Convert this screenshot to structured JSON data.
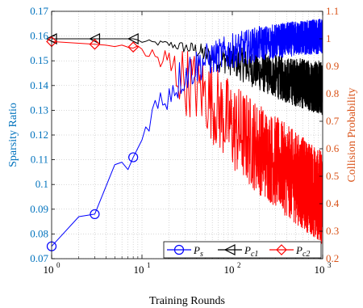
{
  "chart_data": {
    "type": "line",
    "xlabel": "Training Rounds",
    "ylabel_left": "Sparsity Ratio",
    "ylabel_right": "Collision Probability",
    "x_scale": "log",
    "xlim": [
      1,
      1000
    ],
    "ylim_left": [
      0.07,
      0.17
    ],
    "ylim_right": [
      0.2,
      1.1
    ],
    "x_ticks": [
      {
        "value": 1,
        "label": "10",
        "exp": "0"
      },
      {
        "value": 10,
        "label": "10",
        "exp": "1"
      },
      {
        "value": 100,
        "label": "10",
        "exp": "2"
      },
      {
        "value": 1000,
        "label": "10",
        "exp": "3"
      }
    ],
    "y_ticks_left": [
      "0.07",
      "0.08",
      "0.09",
      "0.1",
      "0.11",
      "0.12",
      "0.13",
      "0.14",
      "0.15",
      "0.16",
      "0.17"
    ],
    "y_ticks_right": [
      "0.2",
      "0.3",
      "0.4",
      "0.5",
      "0.6",
      "0.7",
      "0.8",
      "0.9",
      "1",
      "1.1"
    ],
    "grid": true,
    "legend_position": "bottom-right",
    "colors": {
      "ps": "#0000ff",
      "pc1": "#000000",
      "pc2": "#ff0000",
      "left_axis": "#0072bd",
      "right_axis": "#d95319"
    },
    "series": [
      {
        "id": "ps",
        "name_main": "P",
        "name_sub": "s",
        "axis": "left",
        "marker": "circle",
        "x": [
          1,
          2,
          3,
          5,
          6,
          7,
          8,
          10,
          12,
          15,
          20,
          30,
          50,
          100,
          200,
          500,
          1000
        ],
        "y": [
          0.075,
          0.087,
          0.088,
          0.108,
          0.109,
          0.106,
          0.111,
          0.118,
          0.127,
          0.132,
          0.138,
          0.145,
          0.15,
          0.154,
          0.157,
          0.159,
          0.16
        ],
        "noise": [
          0,
          0,
          0,
          0,
          0,
          0,
          0,
          0,
          0.004,
          0.005,
          0.006,
          0.006,
          0.005,
          0.005,
          0.005,
          0.005,
          0.005
        ],
        "marker_x": [
          1,
          3,
          8
        ]
      },
      {
        "id": "pc1",
        "name_main": "P",
        "name_sub": "c1",
        "axis": "right",
        "marker": "triangle-left",
        "x": [
          1,
          3,
          8,
          10,
          20,
          40,
          60,
          100,
          200,
          400,
          1000
        ],
        "y": [
          1.0,
          1.0,
          1.0,
          0.99,
          0.98,
          0.96,
          0.93,
          0.92,
          0.88,
          0.85,
          0.82
        ],
        "noise": [
          0,
          0,
          0,
          0.005,
          0.01,
          0.02,
          0.03,
          0.04,
          0.05,
          0.06,
          0.07
        ],
        "marker_x": [
          1,
          3,
          8
        ]
      },
      {
        "id": "pc2",
        "name_main": "P",
        "name_sub": "c2",
        "axis": "right",
        "marker": "diamond",
        "x": [
          1,
          3,
          8,
          10,
          20,
          30,
          50,
          100,
          200,
          400,
          1000
        ],
        "y": [
          0.99,
          0.98,
          0.97,
          0.96,
          0.9,
          0.85,
          0.8,
          0.68,
          0.6,
          0.52,
          0.42
        ],
        "noise": [
          0,
          0,
          0.005,
          0.01,
          0.06,
          0.09,
          0.1,
          0.12,
          0.12,
          0.12,
          0.12
        ],
        "marker_x": [
          1,
          3,
          8
        ]
      }
    ]
  }
}
